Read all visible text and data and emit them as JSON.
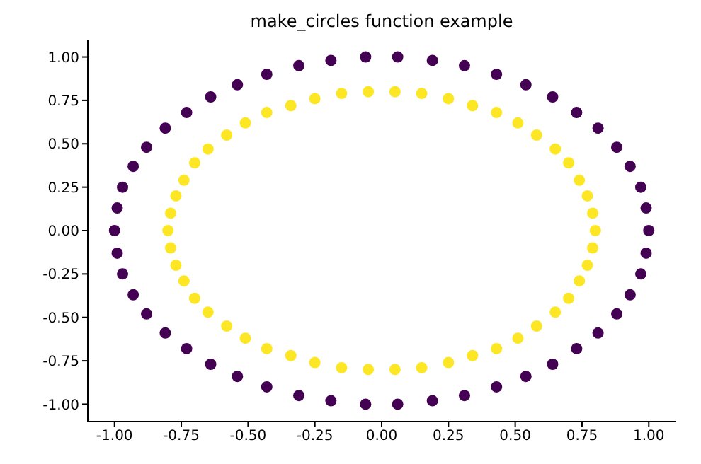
{
  "chart_data": {
    "type": "scatter",
    "title": "make_circles function example",
    "xlim": [
      -1.1,
      1.1
    ],
    "ylim": [
      -1.1,
      1.1
    ],
    "xticks": [
      {
        "value": -1,
        "label": "-1.00"
      },
      {
        "value": -0.75,
        "label": "-0.75"
      },
      {
        "value": -0.5,
        "label": "-0.50"
      },
      {
        "value": -0.25,
        "label": "-0.25"
      },
      {
        "value": 0,
        "label": "0.00"
      },
      {
        "value": 0.25,
        "label": "0.25"
      },
      {
        "value": 0.5,
        "label": "0.50"
      },
      {
        "value": 0.75,
        "label": "0.75"
      },
      {
        "value": 1,
        "label": "1.00"
      }
    ],
    "yticks": [
      {
        "value": -1,
        "label": "-1.00"
      },
      {
        "value": -0.75,
        "label": "-0.75"
      },
      {
        "value": -0.5,
        "label": "-0.50"
      },
      {
        "value": -0.25,
        "label": "-0.25"
      },
      {
        "value": 0,
        "label": "0.00"
      },
      {
        "value": 0.25,
        "label": "0.25"
      },
      {
        "value": 0.5,
        "label": "0.50"
      },
      {
        "value": 0.75,
        "label": "0.75"
      },
      {
        "value": 1,
        "label": "1.00"
      }
    ],
    "grid": false,
    "legend": false,
    "marker": "circle",
    "series": [
      {
        "color": "#440154",
        "x": [
          1,
          0.99,
          0.97,
          0.93,
          0.88,
          0.81,
          0.73,
          0.64,
          0.54,
          0.43,
          0.31,
          0.19,
          0.06,
          -0.06,
          -0.19,
          -0.31,
          -0.43,
          -0.54,
          -0.64,
          -0.73,
          -0.81,
          -0.88,
          -0.93,
          -0.97,
          -0.99,
          -1,
          -0.99,
          -0.97,
          -0.93,
          -0.88,
          -0.81,
          -0.73,
          -0.64,
          -0.54,
          -0.43,
          -0.31,
          -0.19,
          -0.06,
          0.06,
          0.19,
          0.31,
          0.43,
          0.54,
          0.64,
          0.73,
          0.81,
          0.88,
          0.93,
          0.97,
          0.99
        ],
        "values": [
          0,
          0.13,
          0.25,
          0.37,
          0.48,
          0.59,
          0.68,
          0.77,
          0.84,
          0.9,
          0.95,
          0.98,
          1,
          1,
          0.98,
          0.95,
          0.9,
          0.84,
          0.77,
          0.68,
          0.59,
          0.48,
          0.37,
          0.25,
          0.13,
          0,
          -0.13,
          -0.25,
          -0.37,
          -0.48,
          -0.59,
          -0.68,
          -0.77,
          -0.84,
          -0.9,
          -0.95,
          -0.98,
          -1,
          -1,
          -0.98,
          -0.95,
          -0.9,
          -0.84,
          -0.77,
          -0.68,
          -0.59,
          -0.48,
          -0.37,
          -0.25,
          -0.13
        ]
      },
      {
        "color": "#fde725",
        "x": [
          0.8,
          0.79,
          0.77,
          0.74,
          0.7,
          0.65,
          0.58,
          0.51,
          0.43,
          0.34,
          0.25,
          0.15,
          0.05,
          -0.05,
          -0.15,
          -0.25,
          -0.34,
          -0.43,
          -0.51,
          -0.58,
          -0.65,
          -0.7,
          -0.74,
          -0.77,
          -0.79,
          -0.8,
          -0.79,
          -0.77,
          -0.74,
          -0.7,
          -0.65,
          -0.58,
          -0.51,
          -0.43,
          -0.34,
          -0.25,
          -0.15,
          -0.05,
          0.05,
          0.15,
          0.25,
          0.34,
          0.43,
          0.51,
          0.58,
          0.65,
          0.7,
          0.74,
          0.77,
          0.79
        ],
        "values": [
          0,
          0.1,
          0.2,
          0.29,
          0.39,
          0.47,
          0.55,
          0.62,
          0.68,
          0.72,
          0.76,
          0.79,
          0.8,
          0.8,
          0.79,
          0.76,
          0.72,
          0.68,
          0.62,
          0.55,
          0.47,
          0.39,
          0.29,
          0.2,
          0.1,
          0,
          -0.1,
          -0.2,
          -0.29,
          -0.39,
          -0.47,
          -0.55,
          -0.62,
          -0.68,
          -0.72,
          -0.76,
          -0.79,
          -0.8,
          -0.8,
          -0.79,
          -0.76,
          -0.72,
          -0.68,
          -0.62,
          -0.55,
          -0.47,
          -0.39,
          -0.29,
          -0.2,
          -0.1
        ]
      }
    ]
  }
}
